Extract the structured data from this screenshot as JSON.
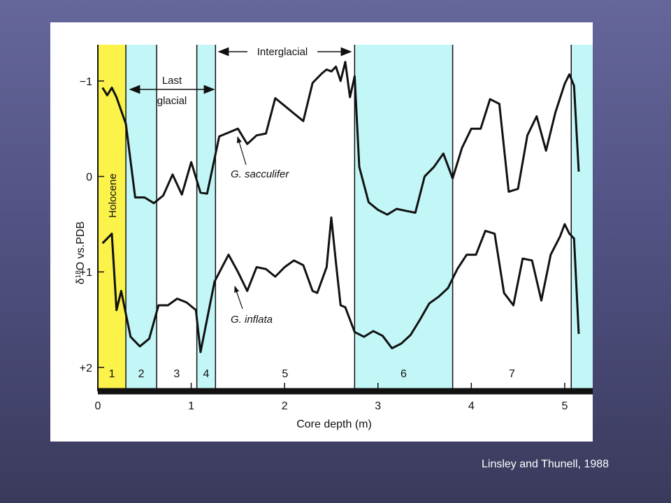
{
  "citation": "Linsley and Thunell, 1988",
  "colors": {
    "holocene": "#fbf24a",
    "glacial": "#c3f6f6",
    "line": "#111111"
  },
  "chart_data": {
    "type": "line",
    "xlabel": "Core depth (m)",
    "ylabel_prefix": "δ",
    "ylabel_super": "18",
    "ylabel_suffix": "O vs.PDB",
    "xlim": [
      0,
      5.3
    ],
    "ylim": [
      2.3,
      -1.4
    ],
    "y_inverted": true,
    "x_ticks": [
      0,
      1,
      2,
      3,
      4,
      5
    ],
    "x_tick_labels": [
      "0",
      "1",
      "2",
      "3",
      "4",
      "5"
    ],
    "y_ticks": [
      -1,
      0,
      1,
      2
    ],
    "y_tick_labels": [
      "−1",
      "0",
      "+1",
      "+2"
    ],
    "stages": [
      {
        "label": "1",
        "x0": 0.0,
        "x1": 0.3,
        "fill": "holocene"
      },
      {
        "label": "2",
        "x0": 0.3,
        "x1": 0.63,
        "fill": "glacial"
      },
      {
        "label": "3",
        "x0": 0.63,
        "x1": 1.06,
        "fill": "none"
      },
      {
        "label": "4",
        "x0": 1.06,
        "x1": 1.26,
        "fill": "glacial"
      },
      {
        "label": "5",
        "x0": 1.26,
        "x1": 2.75,
        "fill": "none"
      },
      {
        "label": "6",
        "x0": 2.75,
        "x1": 3.8,
        "fill": "glacial"
      },
      {
        "label": "7",
        "x0": 3.8,
        "x1": 5.07,
        "fill": "none"
      },
      {
        "label": "",
        "x0": 5.07,
        "x1": 5.3,
        "fill": "glacial"
      }
    ],
    "annotations": {
      "holocene": "Holocene",
      "last_glacial_1": "Last",
      "last_glacial_2": "glacial",
      "interglacial": "Interglacial",
      "g_sacculifer": "G. sacculifer",
      "g_inflata": "G. inflata"
    },
    "series": [
      {
        "name": "G. sacculifer",
        "x": [
          0.05,
          0.1,
          0.15,
          0.2,
          0.3,
          0.4,
          0.5,
          0.6,
          0.7,
          0.8,
          0.9,
          1.0,
          1.1,
          1.17,
          1.3,
          1.4,
          1.5,
          1.6,
          1.7,
          1.8,
          1.9,
          2.0,
          2.1,
          2.2,
          2.3,
          2.4,
          2.45,
          2.5,
          2.55,
          2.6,
          2.65,
          2.7,
          2.75,
          2.8,
          2.9,
          3.0,
          3.1,
          3.2,
          3.3,
          3.4,
          3.5,
          3.6,
          3.7,
          3.8,
          3.9,
          4.0,
          4.1,
          4.2,
          4.3,
          4.4,
          4.5,
          4.6,
          4.7,
          4.8,
          4.9,
          5.0,
          5.05,
          5.1,
          5.15
        ],
        "y": [
          -0.93,
          -0.85,
          -0.93,
          -0.83,
          -0.55,
          0.22,
          0.22,
          0.28,
          0.2,
          -0.02,
          0.19,
          -0.15,
          0.17,
          0.18,
          -0.42,
          -0.46,
          -0.5,
          -0.34,
          -0.43,
          -0.45,
          -0.82,
          -0.74,
          -0.66,
          -0.58,
          -0.98,
          -1.08,
          -1.12,
          -1.1,
          -1.15,
          -1.0,
          -1.2,
          -0.83,
          -1.05,
          -0.1,
          0.27,
          0.35,
          0.4,
          0.34,
          0.36,
          0.38,
          0.0,
          -0.1,
          -0.24,
          0.02,
          -0.3,
          -0.5,
          -0.5,
          -0.81,
          -0.76,
          0.16,
          0.13,
          -0.43,
          -0.63,
          -0.27,
          -0.67,
          -0.97,
          -1.07,
          -0.95,
          -0.05
        ]
      },
      {
        "name": "G. inflata",
        "x": [
          0.05,
          0.1,
          0.15,
          0.2,
          0.25,
          0.35,
          0.45,
          0.55,
          0.65,
          0.75,
          0.85,
          0.95,
          1.05,
          1.1,
          1.25,
          1.4,
          1.5,
          1.6,
          1.7,
          1.8,
          1.9,
          2.0,
          2.1,
          2.2,
          2.3,
          2.35,
          2.45,
          2.5,
          2.55,
          2.6,
          2.65,
          2.75,
          2.85,
          2.95,
          3.05,
          3.15,
          3.25,
          3.35,
          3.45,
          3.55,
          3.65,
          3.75,
          3.85,
          3.95,
          4.05,
          4.15,
          4.25,
          4.35,
          4.45,
          4.55,
          4.65,
          4.75,
          4.85,
          4.95,
          5.0,
          5.05,
          5.1,
          5.15
        ],
        "y": [
          0.7,
          0.65,
          0.6,
          1.4,
          1.2,
          1.68,
          1.78,
          1.7,
          1.35,
          1.35,
          1.28,
          1.32,
          1.4,
          1.84,
          1.1,
          0.82,
          1.0,
          1.2,
          0.95,
          0.97,
          1.05,
          0.95,
          0.88,
          0.93,
          1.2,
          1.22,
          0.95,
          0.43,
          0.9,
          1.35,
          1.37,
          1.63,
          1.68,
          1.62,
          1.67,
          1.8,
          1.75,
          1.66,
          1.5,
          1.33,
          1.26,
          1.17,
          0.97,
          0.82,
          0.82,
          0.57,
          0.6,
          1.22,
          1.35,
          0.86,
          0.88,
          1.3,
          0.82,
          0.63,
          0.5,
          0.6,
          0.65,
          1.65
        ]
      }
    ]
  }
}
